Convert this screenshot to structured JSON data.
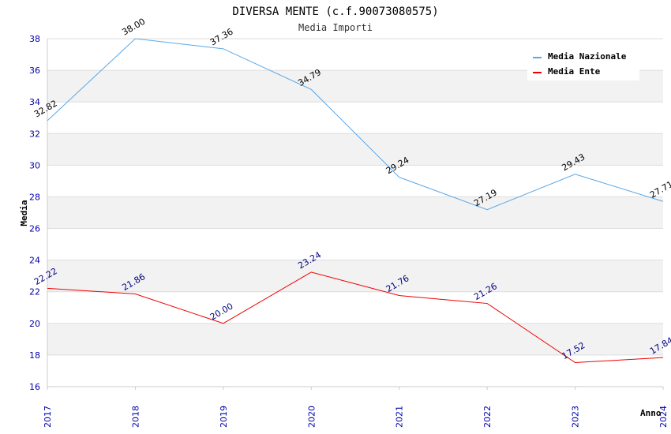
{
  "chart_data": {
    "type": "line",
    "title": "DIVERSA MENTE (c.f.90073080575)",
    "subtitle": "Media Importi",
    "xlabel": "Anno",
    "ylabel": "Media",
    "categories": [
      "2017",
      "2018",
      "2019",
      "2020",
      "2021",
      "2022",
      "2023",
      "2024"
    ],
    "ylim": [
      16,
      38
    ],
    "yticks": [
      16,
      18,
      20,
      22,
      24,
      26,
      28,
      30,
      32,
      34,
      36,
      38
    ],
    "grid": true,
    "legend_position": "top-right",
    "series": [
      {
        "name": "Media Nazionale",
        "color": "#5aa7e6",
        "label_color": "#000000",
        "values": [
          32.82,
          38.0,
          37.36,
          34.79,
          29.24,
          27.19,
          29.43,
          27.71
        ],
        "labels": [
          "32.82",
          "38.00",
          "37.36",
          "34.79",
          "29.24",
          "27.19",
          "29.43",
          "27.71"
        ]
      },
      {
        "name": "Media Ente",
        "color": "#ee0000",
        "label_color": "#000080",
        "values": [
          22.22,
          21.86,
          20.0,
          23.24,
          21.76,
          21.26,
          17.52,
          17.84
        ],
        "labels": [
          "22.22",
          "21.86",
          "20.00",
          "23.24",
          "21.76",
          "21.26",
          "17.52",
          "17.84"
        ]
      }
    ]
  }
}
